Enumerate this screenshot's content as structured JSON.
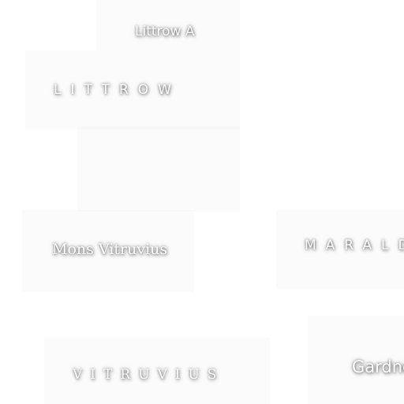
{
  "labels": {
    "littrow_a": "Littrow A",
    "littrow": "LITTROW",
    "mons_vitruvius": "Mons Vitruvius",
    "marald": "MARALD",
    "vitruvius": "VITRUVIUS",
    "gardner": "Gardner"
  }
}
